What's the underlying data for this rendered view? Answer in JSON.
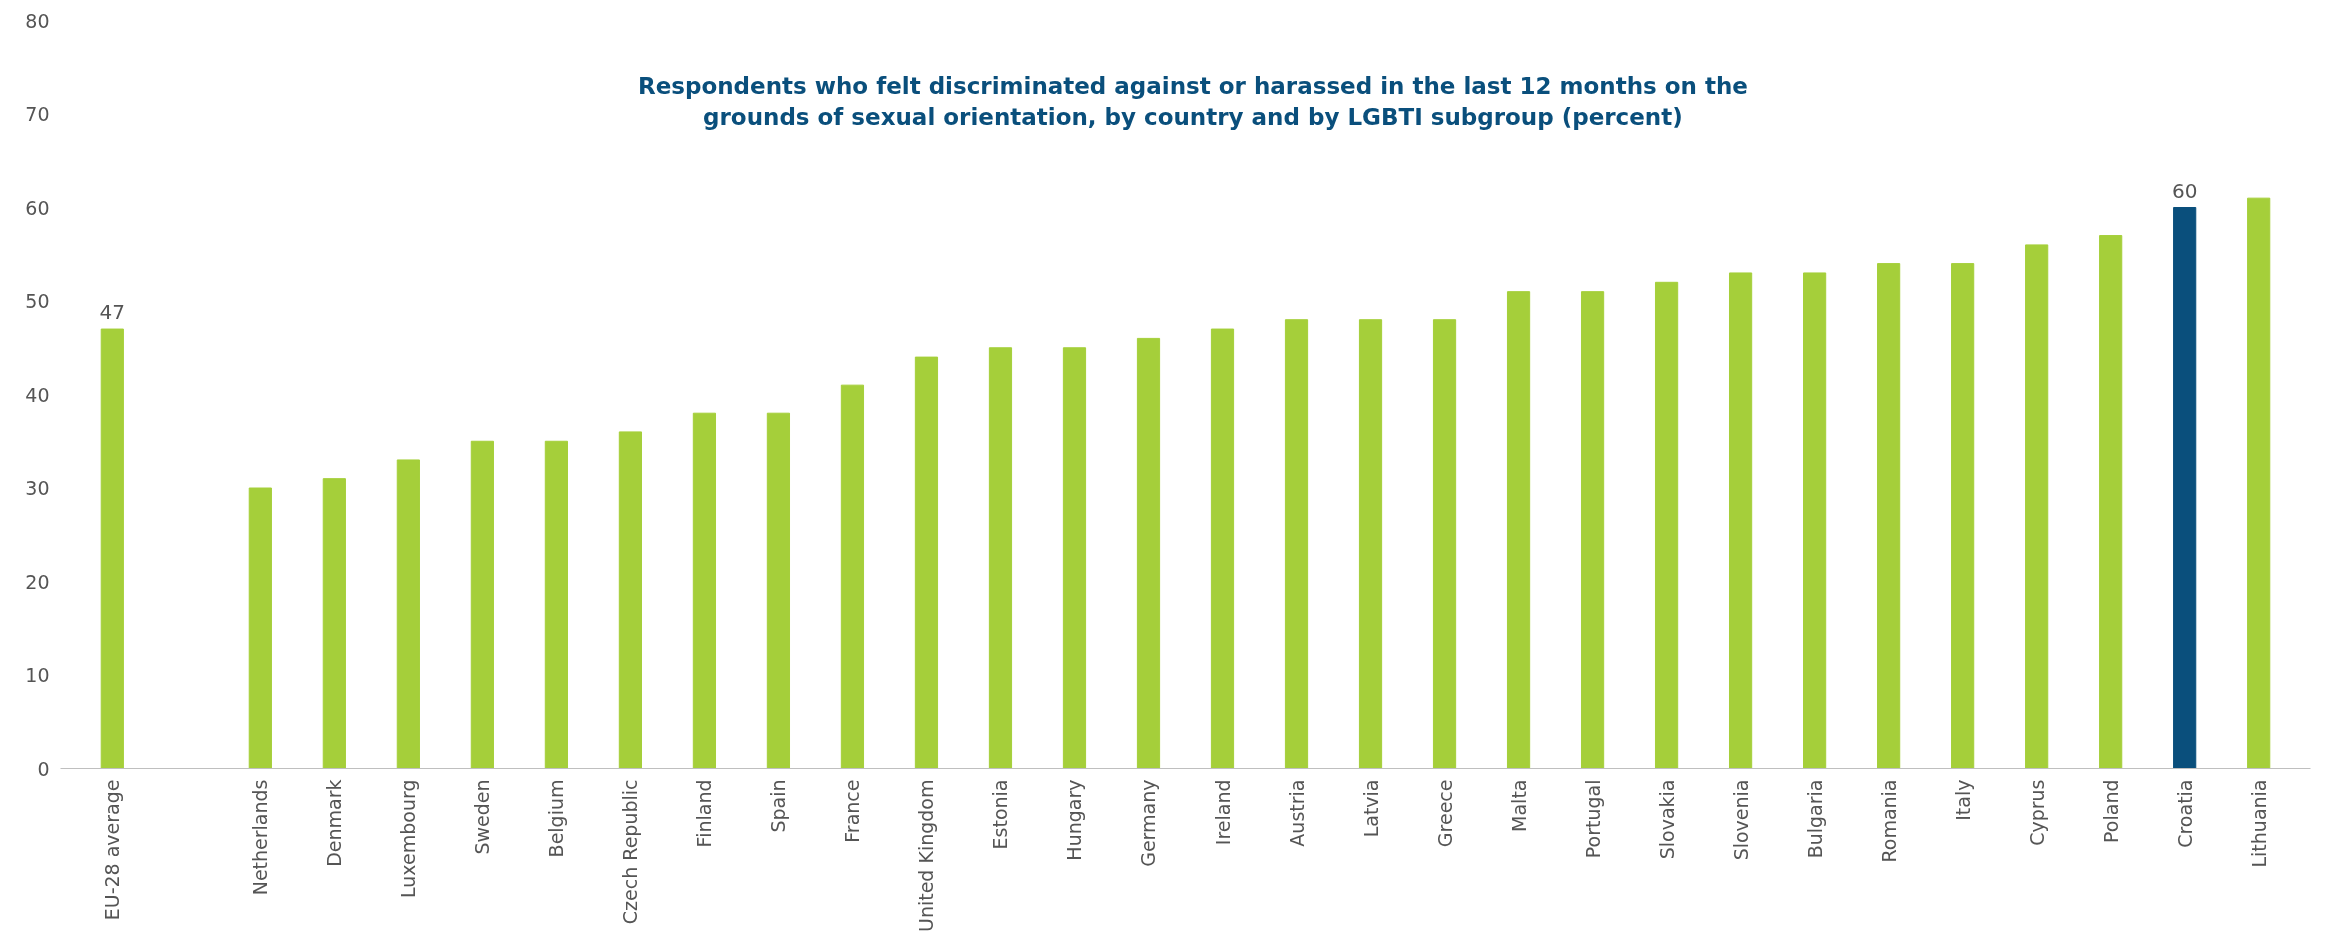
{
  "chart_data": {
    "type": "bar",
    "title": "Respondents who felt discriminated against or harassed in the last 12 months on the\ngrounds of sexual orientation, by country and by LGBTI subgroup (percent)",
    "categories": [
      "EU-28 average",
      null,
      "Netherlands",
      "Denmark",
      "Luxembourg",
      "Sweden",
      "Belgium",
      "Czech Republic",
      "Finland",
      "Spain",
      "France",
      "United Kingdom",
      "Estonia",
      "Hungary",
      "Germany",
      "Ireland",
      "Austria",
      "Latvia",
      "Greece",
      "Malta",
      "Portugal",
      "Slovakia",
      "Slovenia",
      "Bulgaria",
      "Romania",
      "Italy",
      "Cyprus",
      "Poland",
      "Croatia",
      "Lithuania"
    ],
    "values": [
      47,
      null,
      30,
      31,
      33,
      35,
      35,
      36,
      38,
      38,
      41,
      44,
      45,
      45,
      46,
      47,
      48,
      48,
      48,
      51,
      51,
      52,
      53,
      53,
      54,
      54,
      56,
      57,
      60,
      61
    ],
    "colors": [
      "#a5cf3a",
      null,
      "#a5cf3a",
      "#a5cf3a",
      "#a5cf3a",
      "#a5cf3a",
      "#a5cf3a",
      "#a5cf3a",
      "#a5cf3a",
      "#a5cf3a",
      "#a5cf3a",
      "#a5cf3a",
      "#a5cf3a",
      "#a5cf3a",
      "#a5cf3a",
      "#a5cf3a",
      "#a5cf3a",
      "#a5cf3a",
      "#a5cf3a",
      "#a5cf3a",
      "#a5cf3a",
      "#a5cf3a",
      "#a5cf3a",
      "#a5cf3a",
      "#a5cf3a",
      "#a5cf3a",
      "#a5cf3a",
      "#a5cf3a",
      "#0a4f7c",
      "#a5cf3a"
    ],
    "value_labels": [
      "47",
      null,
      null,
      null,
      null,
      null,
      null,
      null,
      null,
      null,
      null,
      null,
      null,
      null,
      null,
      null,
      null,
      null,
      null,
      null,
      null,
      null,
      null,
      null,
      null,
      null,
      null,
      null,
      "60",
      null
    ],
    "ylim": [
      0,
      80
    ],
    "yticks": [
      0,
      10,
      20,
      30,
      40,
      50,
      60,
      70,
      80
    ],
    "grid": false
  }
}
